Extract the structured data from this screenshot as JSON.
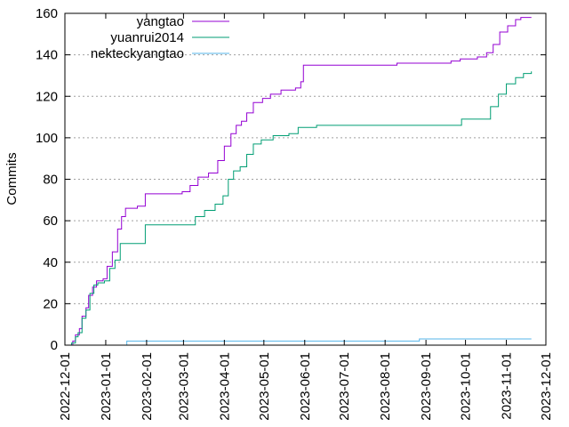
{
  "chart_data": {
    "type": "line",
    "title": "",
    "xlabel": "",
    "ylabel": "Commits",
    "ylim": [
      0,
      160
    ],
    "xlim": [
      "2022-12-01",
      "2023-12-01"
    ],
    "grid": true,
    "legend_position": "top-left",
    "y_ticks": [
      "0",
      "20",
      "40",
      "60",
      "80",
      "100",
      "120",
      "140",
      "160"
    ],
    "x_ticks": [
      "2022-12-01",
      "2023-01-01",
      "2023-02-01",
      "2023-03-01",
      "2023-04-01",
      "2023-05-01",
      "2023-06-01",
      "2023-07-01",
      "2023-08-01",
      "2023-09-01",
      "2023-10-01",
      "2023-11-01",
      "2023-12-01"
    ],
    "series": [
      {
        "name": "yangtao",
        "color": "#9400d3",
        "points": [
          [
            "2022-12-06",
            0
          ],
          [
            "2022-12-07",
            2
          ],
          [
            "2022-12-09",
            5
          ],
          [
            "2022-12-12",
            8
          ],
          [
            "2022-12-14",
            14
          ],
          [
            "2022-12-17",
            18
          ],
          [
            "2022-12-19",
            24
          ],
          [
            "2022-12-22",
            28
          ],
          [
            "2022-12-25",
            31
          ],
          [
            "2022-12-30",
            32
          ],
          [
            "2023-01-02",
            38
          ],
          [
            "2023-01-06",
            45
          ],
          [
            "2023-01-10",
            56
          ],
          [
            "2023-01-13",
            62
          ],
          [
            "2023-01-16",
            66
          ],
          [
            "2023-01-25",
            67
          ],
          [
            "2023-01-31",
            73
          ],
          [
            "2023-02-14",
            73
          ],
          [
            "2023-02-28",
            74
          ],
          [
            "2023-03-06",
            77
          ],
          [
            "2023-03-12",
            81
          ],
          [
            "2023-03-20",
            83
          ],
          [
            "2023-03-27",
            89
          ],
          [
            "2023-04-01",
            96
          ],
          [
            "2023-04-06",
            102
          ],
          [
            "2023-04-10",
            106
          ],
          [
            "2023-04-14",
            108
          ],
          [
            "2023-04-18",
            112
          ],
          [
            "2023-04-23",
            117
          ],
          [
            "2023-04-30",
            119
          ],
          [
            "2023-05-06",
            121
          ],
          [
            "2023-05-14",
            123
          ],
          [
            "2023-05-25",
            124
          ],
          [
            "2023-05-29",
            127
          ],
          [
            "2023-05-31",
            135
          ],
          [
            "2023-06-15",
            135
          ],
          [
            "2023-07-10",
            135
          ],
          [
            "2023-08-10",
            136
          ],
          [
            "2023-09-20",
            137
          ],
          [
            "2023-09-27",
            138
          ],
          [
            "2023-10-10",
            139
          ],
          [
            "2023-10-17",
            141
          ],
          [
            "2023-10-22",
            145
          ],
          [
            "2023-10-27",
            151
          ],
          [
            "2023-11-02",
            154
          ],
          [
            "2023-11-08",
            157
          ],
          [
            "2023-11-12",
            158
          ],
          [
            "2023-11-20",
            158
          ]
        ]
      },
      {
        "name": "yuanrui2014",
        "color": "#009e73",
        "points": [
          [
            "2022-12-05",
            0
          ],
          [
            "2022-12-06",
            1
          ],
          [
            "2022-12-09",
            4
          ],
          [
            "2022-12-11",
            6
          ],
          [
            "2022-12-14",
            13
          ],
          [
            "2022-12-17",
            17
          ],
          [
            "2022-12-20",
            25
          ],
          [
            "2022-12-23",
            29
          ],
          [
            "2022-12-26",
            30
          ],
          [
            "2022-12-31",
            31
          ],
          [
            "2023-01-04",
            37
          ],
          [
            "2023-01-08",
            41
          ],
          [
            "2023-01-12",
            49
          ],
          [
            "2023-01-26",
            49
          ],
          [
            "2023-01-31",
            58
          ],
          [
            "2023-02-14",
            58
          ],
          [
            "2023-03-05",
            58
          ],
          [
            "2023-03-10",
            62
          ],
          [
            "2023-03-17",
            65
          ],
          [
            "2023-03-25",
            68
          ],
          [
            "2023-03-31",
            72
          ],
          [
            "2023-04-04",
            80
          ],
          [
            "2023-04-08",
            84
          ],
          [
            "2023-04-13",
            86
          ],
          [
            "2023-04-18",
            92
          ],
          [
            "2023-04-23",
            97
          ],
          [
            "2023-04-29",
            99
          ],
          [
            "2023-05-08",
            101
          ],
          [
            "2023-05-20",
            102
          ],
          [
            "2023-05-27",
            105
          ],
          [
            "2023-06-10",
            106
          ],
          [
            "2023-07-10",
            106
          ],
          [
            "2023-08-10",
            106
          ],
          [
            "2023-09-10",
            106
          ],
          [
            "2023-09-27",
            106
          ],
          [
            "2023-09-28",
            109
          ],
          [
            "2023-10-15",
            109
          ],
          [
            "2023-10-20",
            115
          ],
          [
            "2023-10-26",
            121
          ],
          [
            "2023-11-01",
            126
          ],
          [
            "2023-11-08",
            129
          ],
          [
            "2023-11-14",
            131
          ],
          [
            "2023-11-20",
            132
          ]
        ]
      },
      {
        "name": "nekteckyangtao",
        "color": "#56b4e9",
        "points": [
          [
            "2023-01-16",
            0
          ],
          [
            "2023-01-17",
            2
          ],
          [
            "2023-04-10",
            2
          ],
          [
            "2023-06-10",
            2
          ],
          [
            "2023-08-26",
            2
          ],
          [
            "2023-08-27",
            3
          ],
          [
            "2023-10-10",
            3
          ],
          [
            "2023-11-20",
            3
          ]
        ]
      }
    ]
  }
}
